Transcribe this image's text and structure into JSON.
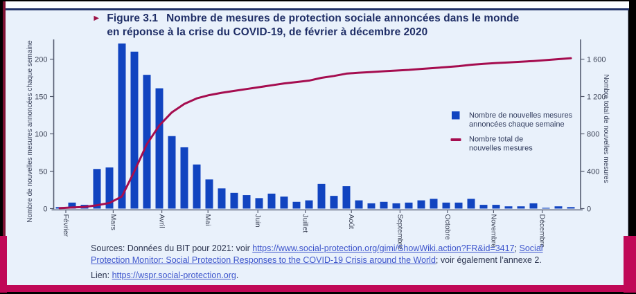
{
  "figure": {
    "marker": "►",
    "label": "Figure 3.1",
    "title_line1": "Nombre de mesures de protection sociale annoncées dans le monde",
    "title_line2": "en réponse à la crise du COVID-19, de février à décembre 2020"
  },
  "chart_data": {
    "type": "bar",
    "title": "Nombre de mesures de protection sociale annoncées dans le monde en réponse à la crise du COVID-19, de février à décembre 2020",
    "x_unit": "semaines (février–décembre 2020)",
    "n_weeks": 42,
    "series": [
      {
        "name": "Nombre de nouvelles mesures annoncées chaque semaine",
        "type": "bar",
        "color": "#1144C0",
        "axis": "left",
        "values": [
          2,
          8,
          5,
          53,
          55,
          221,
          210,
          179,
          161,
          97,
          82,
          59,
          39,
          27,
          21,
          18,
          14,
          20,
          16,
          9,
          11,
          33,
          17,
          30,
          11,
          7,
          9,
          7,
          8,
          11,
          13,
          8,
          8,
          13,
          5,
          5,
          3,
          3,
          7,
          1,
          3,
          2
        ]
      },
      {
        "name": "Nombre total de nouvelles mesures",
        "type": "line",
        "color": "#A50D4F",
        "axis": "right",
        "values": [
          5,
          12,
          18,
          35,
          60,
          130,
          400,
          690,
          890,
          1030,
          1120,
          1180,
          1215,
          1240,
          1260,
          1280,
          1300,
          1320,
          1340,
          1355,
          1370,
          1400,
          1420,
          1445,
          1455,
          1462,
          1470,
          1478,
          1485,
          1495,
          1505,
          1515,
          1525,
          1540,
          1550,
          1558,
          1565,
          1572,
          1580,
          1590,
          1600,
          1610
        ]
      }
    ],
    "x_months": [
      {
        "label": "Février",
        "week": 0.5
      },
      {
        "label": "Mars",
        "week": 4.3
      },
      {
        "label": "Avril",
        "week": 8.2
      },
      {
        "label": "Mai",
        "week": 11.9
      },
      {
        "label": "Juin",
        "week": 15.9
      },
      {
        "label": "Juillet",
        "week": 19.7
      },
      {
        "label": "Août",
        "week": 23.4
      },
      {
        "label": "Septembre",
        "week": 27.3
      },
      {
        "label": "Octobre",
        "week": 31.1
      },
      {
        "label": "Novembre",
        "week": 34.8
      },
      {
        "label": "Décembre",
        "week": 38.7
      }
    ],
    "y_left": {
      "label": "Nombre de nouvelles mesures annoncées chaque semaine",
      "ticks": [
        0,
        50,
        100,
        150,
        200
      ],
      "ylim": [
        0,
        228
      ]
    },
    "y_right": {
      "label": "Nombre total de nouvelles mesures",
      "ticks": [
        0,
        400,
        800,
        1200,
        1600
      ],
      "tick_labels": [
        "0",
        "400",
        "800",
        "1 200",
        "1 600"
      ],
      "ylim": [
        0,
        1830
      ]
    },
    "grid": false,
    "legend_position": "center-right"
  },
  "legend": {
    "items": [
      {
        "swatch": "square",
        "color": "#1144C0",
        "label_lines": [
          "Nombre de nouvelles mesures",
          "annoncées chaque semaine"
        ]
      },
      {
        "swatch": "line",
        "color": "#A50D4F",
        "label_lines": [
          "Nombre total de",
          "nouvelles mesures"
        ]
      }
    ]
  },
  "sources": {
    "segments": [
      {
        "type": "text",
        "value": "Sources: Données du BIT pour 2021: voir "
      },
      {
        "type": "link",
        "value": "https://www.social-protection.org/gimi/ShowWiki.action?FR&id=3417"
      },
      {
        "type": "text",
        "value": "; "
      },
      {
        "type": "link",
        "value": "Social Protection Monitor: Social Protection Responses to the COVID-19 Crisis around the World"
      },
      {
        "type": "text",
        "value": "; voir également l’annexe 2."
      }
    ]
  },
  "lien": {
    "segments": [
      {
        "type": "text",
        "value": "Lien: "
      },
      {
        "type": "link",
        "value": "https://wspr.social-protection.org"
      },
      {
        "type": "text",
        "value": "."
      }
    ]
  },
  "colors": {
    "panel_bg": "#E9F1FB",
    "title_navy": "#1F2E66",
    "bar_blue": "#1144C0",
    "line_crimson": "#A50D4F",
    "frame_crimson": "#C00857",
    "axis": "#555C70",
    "baseline": "#8A92A6"
  }
}
